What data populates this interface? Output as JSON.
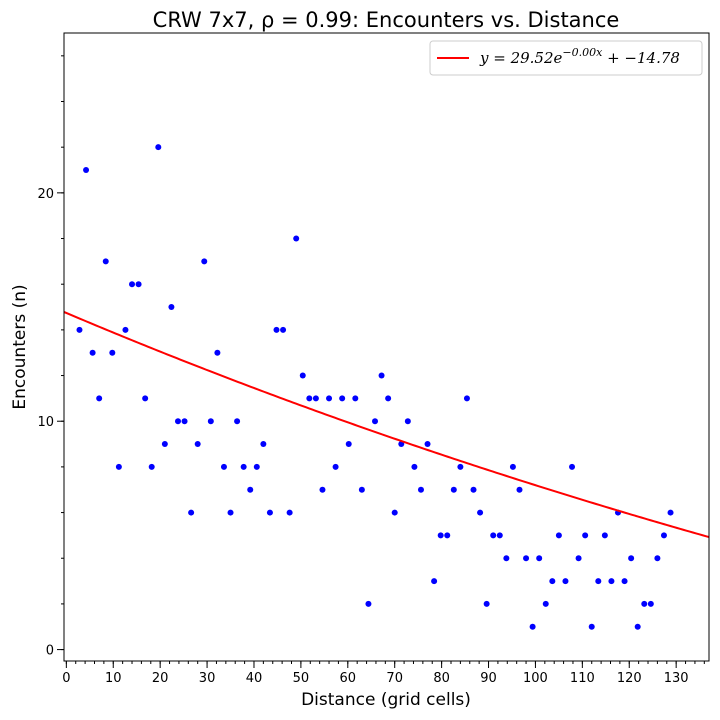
{
  "chart_data": {
    "type": "scatter",
    "title": "CRW 7x7, ρ = 0.99: Encounters vs. Distance",
    "xlabel": "Distance (grid cells)",
    "ylabel": "Encounters (n)",
    "xlim": [
      -0.5,
      137
    ],
    "ylim": [
      -0.5,
      27
    ],
    "xticks": [
      0,
      10,
      20,
      30,
      40,
      50,
      60,
      70,
      80,
      90,
      100,
      110,
      120,
      130
    ],
    "yticks": [
      0,
      10,
      20
    ],
    "x_minor_step": 2,
    "y_minor_step": 2,
    "grid": false,
    "legend_position": "top-right",
    "point_color": "#0000ff",
    "fit_color": "#ff0000",
    "series": [
      {
        "type": "scatter",
        "points": [
          [
            2.8,
            14
          ],
          [
            4.2,
            21
          ],
          [
            5.6,
            13
          ],
          [
            7.0,
            11
          ],
          [
            8.4,
            17
          ],
          [
            9.8,
            13
          ],
          [
            11.2,
            8
          ],
          [
            12.6,
            14
          ],
          [
            14.0,
            16
          ],
          [
            15.4,
            16
          ],
          [
            16.8,
            11
          ],
          [
            18.2,
            8
          ],
          [
            19.6,
            22
          ],
          [
            21.0,
            9
          ],
          [
            22.4,
            15
          ],
          [
            23.8,
            10
          ],
          [
            25.2,
            10
          ],
          [
            26.6,
            6
          ],
          [
            28.0,
            9
          ],
          [
            29.4,
            17
          ],
          [
            30.8,
            10
          ],
          [
            32.2,
            13
          ],
          [
            33.6,
            8
          ],
          [
            35.0,
            6
          ],
          [
            36.4,
            10
          ],
          [
            37.8,
            8
          ],
          [
            39.2,
            7
          ],
          [
            40.6,
            8
          ],
          [
            42.0,
            9
          ],
          [
            43.4,
            6
          ],
          [
            44.8,
            14
          ],
          [
            46.2,
            14
          ],
          [
            47.6,
            6
          ],
          [
            49.0,
            18
          ],
          [
            50.4,
            12
          ],
          [
            51.8,
            11
          ],
          [
            53.2,
            11
          ],
          [
            54.6,
            7
          ],
          [
            56.0,
            11
          ],
          [
            57.4,
            8
          ],
          [
            58.8,
            11
          ],
          [
            60.2,
            9
          ],
          [
            61.6,
            11
          ],
          [
            63.0,
            7
          ],
          [
            64.4,
            2
          ],
          [
            65.8,
            10
          ],
          [
            67.2,
            12
          ],
          [
            68.6,
            11
          ],
          [
            70.0,
            6
          ],
          [
            71.4,
            9
          ],
          [
            72.8,
            10
          ],
          [
            74.2,
            8
          ],
          [
            75.6,
            7
          ],
          [
            77.0,
            9
          ],
          [
            78.4,
            3
          ],
          [
            79.8,
            5
          ],
          [
            81.2,
            5
          ],
          [
            82.6,
            7
          ],
          [
            84.0,
            8
          ],
          [
            85.4,
            11
          ],
          [
            86.8,
            7
          ],
          [
            88.2,
            6
          ],
          [
            89.6,
            2
          ],
          [
            91.0,
            5
          ],
          [
            92.4,
            5
          ],
          [
            93.8,
            4
          ],
          [
            95.2,
            8
          ],
          [
            96.6,
            7
          ],
          [
            98.0,
            4
          ],
          [
            99.4,
            1
          ],
          [
            100.8,
            4
          ],
          [
            102.2,
            2
          ],
          [
            103.6,
            3
          ],
          [
            105.0,
            5
          ],
          [
            106.4,
            3
          ],
          [
            107.8,
            8
          ],
          [
            109.2,
            4
          ],
          [
            110.6,
            5
          ],
          [
            112.0,
            1
          ],
          [
            113.4,
            3
          ],
          [
            114.8,
            5
          ],
          [
            116.2,
            3
          ],
          [
            117.6,
            6
          ],
          [
            119.0,
            3
          ],
          [
            120.4,
            4
          ],
          [
            121.8,
            1
          ],
          [
            123.2,
            2
          ],
          [
            124.6,
            2
          ],
          [
            126.0,
            4
          ],
          [
            127.4,
            5
          ],
          [
            128.8,
            6
          ]
        ]
      },
      {
        "type": "line",
        "name": "y = 29.52e^{-0.00x} + -14.78",
        "fit": {
          "a": 29.52,
          "b": 0.00295,
          "c": -14.78
        },
        "legend_parts": {
          "lhs": "y = 29.52e",
          "exp": "−0.00x",
          "rhs": " + −14.78"
        }
      }
    ]
  }
}
